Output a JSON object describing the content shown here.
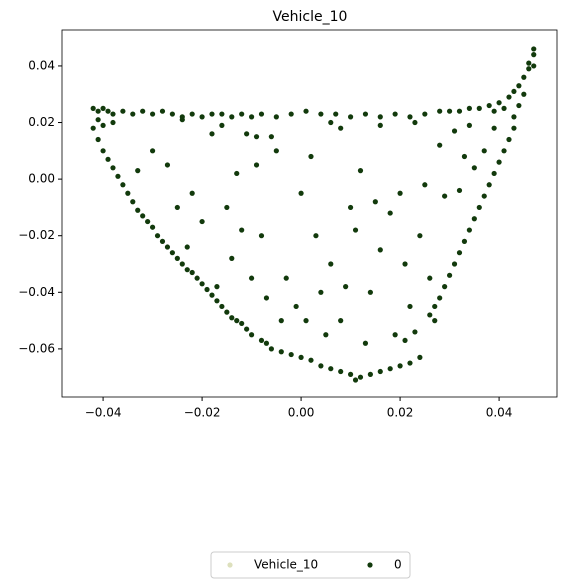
{
  "chart_data": {
    "type": "scatter",
    "title": "Vehicle_10",
    "xlim": [
      -0.0483,
      0.0517
    ],
    "ylim": [
      -0.077,
      0.0527
    ],
    "xticks": [
      {
        "value": -0.04,
        "label": "−0.04"
      },
      {
        "value": -0.02,
        "label": "−0.02"
      },
      {
        "value": 0,
        "label": "0.00"
      },
      0.02,
      0.04
    ],
    "yticks": [
      {
        "value": -0.06,
        "label": "−0.06"
      },
      {
        "value": -0.04,
        "label": "−0.04"
      },
      {
        "value": -0.02,
        "label": "−0.02"
      },
      {
        "value": 0,
        "label": "0.00"
      },
      0.02,
      0.04
    ],
    "legend": "bottom",
    "series": [
      {
        "name": "Vehicle_10",
        "color": "#dde0bd",
        "x": [],
        "y": []
      },
      {
        "name": "0",
        "color": "#123a0c",
        "x": [
          -0.042,
          -0.041,
          -0.04,
          -0.039,
          -0.038,
          -0.036,
          -0.034,
          -0.032,
          -0.03,
          -0.028,
          -0.026,
          -0.024,
          -0.022,
          -0.02,
          -0.018,
          -0.016,
          -0.014,
          -0.012,
          -0.01,
          -0.008,
          -0.005,
          -0.002,
          0.001,
          0.004,
          0.007,
          0.01,
          0.013,
          0.016,
          0.019,
          0.022,
          0.025,
          0.028,
          0.03,
          0.032,
          0.034,
          0.036,
          0.038,
          0.04,
          0.042,
          0.043,
          0.044,
          0.045,
          0.046,
          0.047,
          0.047,
          0.047,
          0.046,
          -0.041,
          -0.04,
          -0.038,
          -0.024,
          -0.016,
          -0.011,
          -0.009,
          0.016,
          0.008,
          0.023,
          0.041,
          0.039,
          -0.042,
          -0.041,
          -0.04,
          -0.039,
          -0.038,
          -0.037,
          -0.036,
          -0.035,
          -0.034,
          -0.033,
          -0.032,
          -0.031,
          -0.03,
          -0.029,
          -0.028,
          -0.027,
          -0.026,
          -0.025,
          -0.024,
          -0.023,
          -0.022,
          -0.021,
          -0.02,
          -0.019,
          -0.018,
          -0.017,
          -0.016,
          -0.015,
          -0.014,
          -0.013,
          -0.012,
          -0.011,
          -0.01,
          -0.008,
          -0.007,
          -0.006,
          -0.004,
          -0.002,
          0.0,
          0.002,
          0.004,
          0.006,
          0.008,
          0.01,
          0.011,
          0.012,
          0.014,
          0.016,
          0.018,
          0.02,
          0.022,
          0.024,
          0.045,
          0.044,
          0.043,
          0.043,
          0.042,
          0.041,
          0.04,
          0.039,
          0.038,
          0.037,
          0.036,
          0.035,
          0.034,
          0.033,
          0.032,
          0.031,
          0.03,
          0.029,
          0.028,
          0.027,
          0.026,
          0.027,
          0.023,
          0.021,
          0.039,
          0.037,
          0.035,
          0.033,
          0.032,
          0.031,
          0.029,
          0.028,
          0.034,
          -0.03,
          -0.033,
          -0.027,
          -0.025,
          -0.022,
          -0.018,
          -0.015,
          -0.012,
          -0.013,
          -0.01,
          -0.008,
          -0.005,
          -0.003,
          0.0,
          0.002,
          0.003,
          -0.001,
          0.004,
          0.006,
          0.008,
          0.01,
          0.011,
          0.012,
          0.014,
          0.016,
          0.018,
          0.02,
          0.021,
          0.022,
          0.024,
          0.025,
          0.019,
          0.013,
          0.005,
          -0.004,
          -0.007,
          -0.014,
          -0.017,
          -0.02,
          -0.023,
          0.009,
          0.015,
          0.026,
          0.001,
          -0.009,
          0.006,
          -0.006
        ],
        "y": [
          0.025,
          0.024,
          0.025,
          0.024,
          0.023,
          0.024,
          0.023,
          0.024,
          0.023,
          0.024,
          0.023,
          0.022,
          0.023,
          0.022,
          0.023,
          0.023,
          0.022,
          0.023,
          0.022,
          0.023,
          0.022,
          0.023,
          0.024,
          0.023,
          0.023,
          0.022,
          0.023,
          0.022,
          0.023,
          0.022,
          0.023,
          0.024,
          0.024,
          0.024,
          0.025,
          0.025,
          0.026,
          0.027,
          0.029,
          0.031,
          0.033,
          0.036,
          0.039,
          0.04,
          0.044,
          0.046,
          0.041,
          0.021,
          0.019,
          0.02,
          0.021,
          0.019,
          0.016,
          0.015,
          0.019,
          0.018,
          0.02,
          0.025,
          0.024,
          0.018,
          0.014,
          0.01,
          0.007,
          0.004,
          0.001,
          -0.002,
          -0.005,
          -0.008,
          -0.011,
          -0.013,
          -0.015,
          -0.017,
          -0.02,
          -0.022,
          -0.024,
          -0.026,
          -0.028,
          -0.03,
          -0.032,
          -0.033,
          -0.035,
          -0.037,
          -0.039,
          -0.041,
          -0.043,
          -0.045,
          -0.047,
          -0.049,
          -0.05,
          -0.051,
          -0.053,
          -0.055,
          -0.057,
          -0.058,
          -0.06,
          -0.061,
          -0.062,
          -0.063,
          -0.064,
          -0.066,
          -0.067,
          -0.068,
          -0.069,
          -0.071,
          -0.07,
          -0.069,
          -0.068,
          -0.067,
          -0.066,
          -0.065,
          -0.063,
          0.03,
          0.026,
          0.022,
          0.018,
          0.014,
          0.01,
          0.006,
          0.002,
          -0.002,
          -0.006,
          -0.01,
          -0.014,
          -0.018,
          -0.022,
          -0.026,
          -0.03,
          -0.034,
          -0.038,
          -0.042,
          -0.045,
          -0.048,
          -0.05,
          -0.054,
          -0.057,
          0.018,
          0.01,
          0.004,
          0.008,
          -0.004,
          0.017,
          -0.006,
          0.012,
          0.019,
          0.01,
          0.003,
          0.005,
          -0.01,
          -0.005,
          0.016,
          -0.01,
          -0.018,
          0.002,
          -0.035,
          -0.02,
          0.01,
          -0.035,
          -0.005,
          0.008,
          -0.02,
          -0.045,
          -0.04,
          -0.03,
          -0.05,
          -0.01,
          -0.018,
          0.003,
          -0.04,
          -0.025,
          -0.012,
          -0.005,
          -0.03,
          -0.045,
          -0.02,
          -0.002,
          -0.055,
          -0.058,
          -0.055,
          -0.05,
          -0.042,
          -0.028,
          -0.038,
          -0.015,
          -0.024,
          -0.038,
          -0.008,
          -0.035,
          -0.05,
          0.005,
          0.02,
          0.015
        ]
      }
    ]
  }
}
